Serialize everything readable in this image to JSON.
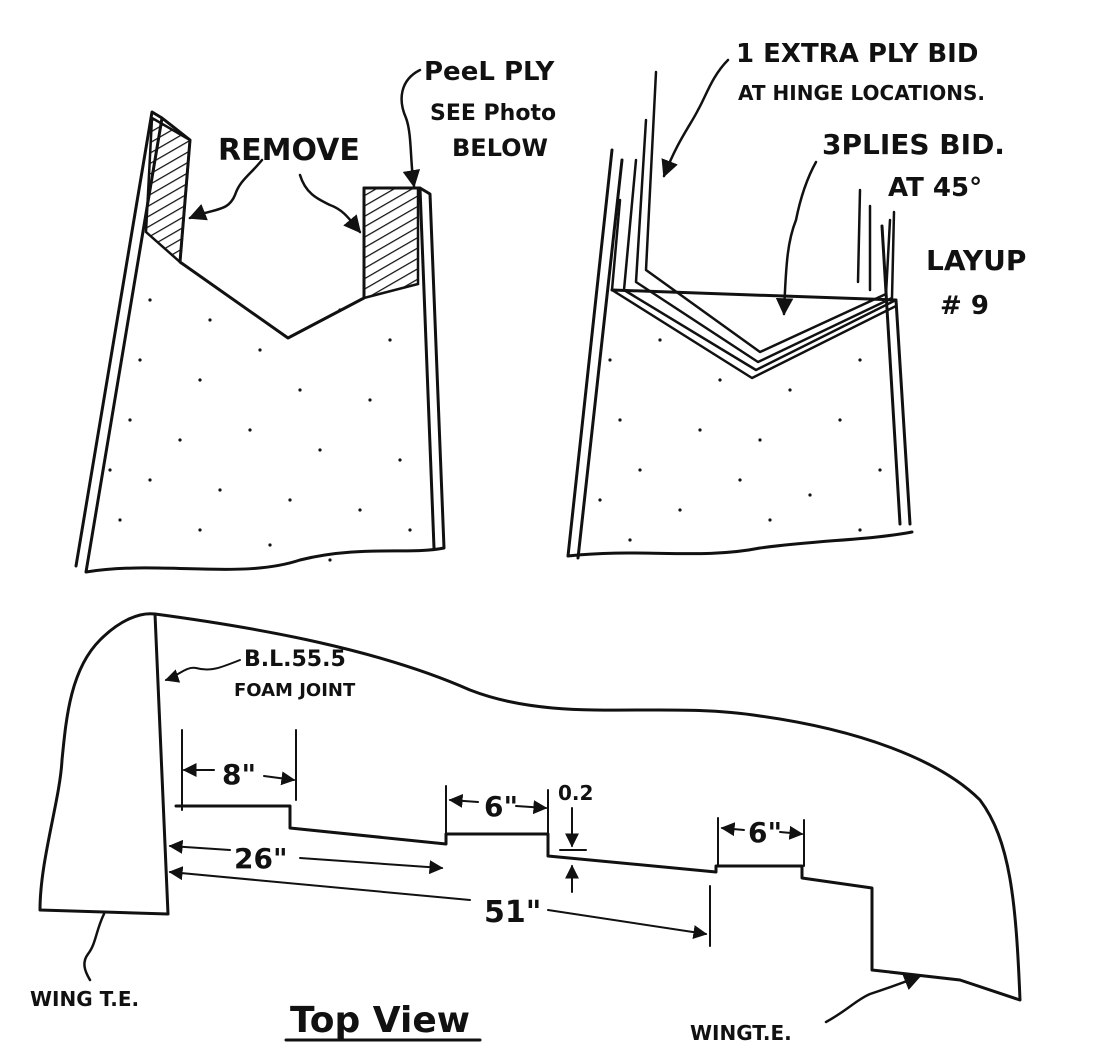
{
  "left_sketch": {
    "remove_label": "REMOVE",
    "peel_ply_label": "PeeL PLY",
    "see_photo_label": "SEE Photo",
    "below_label": "BELOW"
  },
  "right_sketch": {
    "extra_ply_line1": "1 EXTRA PLY BID",
    "extra_ply_line2": "AT HINGE LOCATIONS.",
    "three_plies_line1": "3PLIES BID.",
    "three_plies_line2": "AT 45°",
    "layup_line1": "LAYUP",
    "layup_line2": "# 9"
  },
  "top_view": {
    "bl_label": "B.L.55.5",
    "foam_joint_label": "FOAM JOINT",
    "dim_8": "8\"",
    "dim_26": "26\"",
    "dim_6_a": "6\"",
    "dim_0_2": "0.2",
    "dim_6_b": "6\"",
    "dim_51": "51\"",
    "wing_te_left": "WING T.E.",
    "wing_te_right": "WINGT.E.",
    "title": "Top View"
  }
}
